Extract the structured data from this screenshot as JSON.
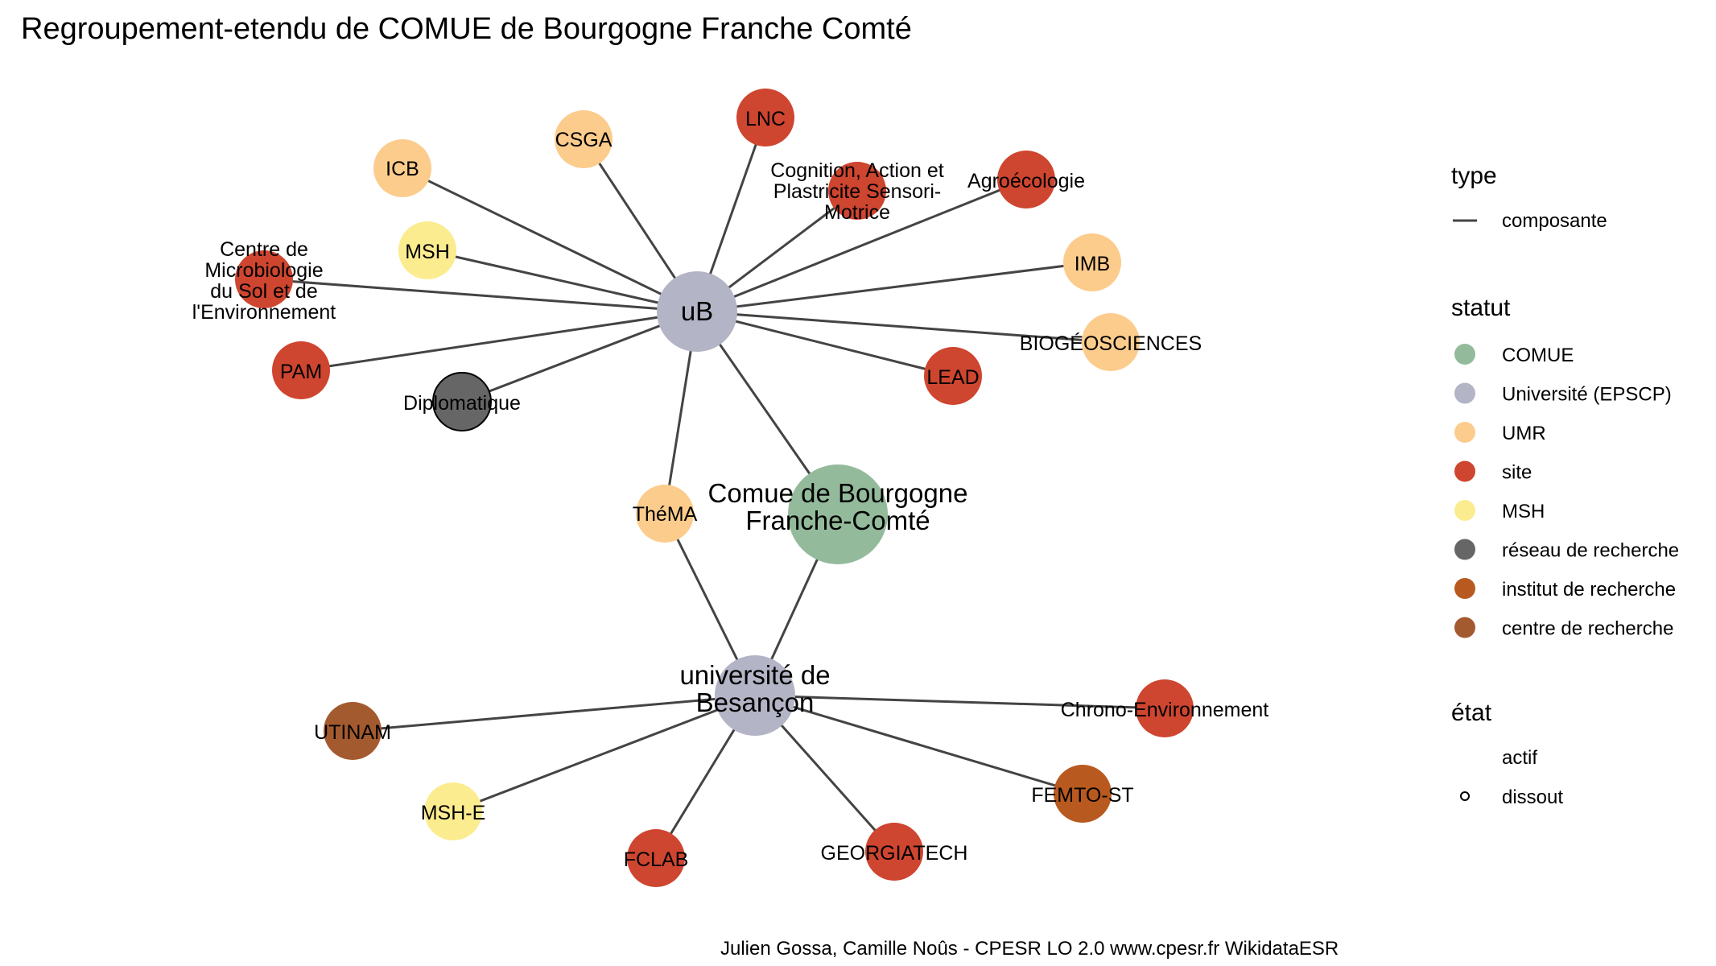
{
  "title": "Regroupement-etendu de COMUE de Bourgogne Franche Comté",
  "caption": "Julien Gossa, Camille Noûs - CPESR LO 2.0 www.cpesr.fr WikidataESR",
  "legend": {
    "type": {
      "title": "type",
      "items": [
        "composante"
      ]
    },
    "statut": {
      "title": "statut",
      "items": [
        {
          "label": "COMUE",
          "color": "#93bb9b"
        },
        {
          "label": "Université (EPSCP)",
          "color": "#b3b4c5"
        },
        {
          "label": "UMR",
          "color": "#fccc8c"
        },
        {
          "label": "site",
          "color": "#ce4530"
        },
        {
          "label": "MSH",
          "color": "#fcec90"
        },
        {
          "label": "réseau de recherche",
          "color": "#666666"
        },
        {
          "label": "institut de recherche",
          "color": "#b85a1f"
        },
        {
          "label": "centre de recherche",
          "color": "#a35a2f"
        }
      ]
    },
    "etat": {
      "title": "état",
      "items": [
        "actif",
        "dissout"
      ]
    }
  },
  "nodes": [
    {
      "id": "comue",
      "label": [
        "Comue de Bourgogne",
        "Franche-Comté"
      ],
      "statut": "COMUE",
      "color": "#93bb9b"
    },
    {
      "id": "ub",
      "label": [
        "uB"
      ],
      "statut": "Université (EPSCP)",
      "color": "#b3b4c5"
    },
    {
      "id": "ubesancon",
      "label": [
        "université de",
        "Besançon"
      ],
      "statut": "Université (EPSCP)",
      "color": "#b3b4c5"
    },
    {
      "id": "thema",
      "label": [
        "ThéMA"
      ],
      "statut": "UMR",
      "color": "#fccc8c"
    },
    {
      "id": "icb",
      "label": [
        "ICB"
      ],
      "statut": "UMR",
      "color": "#fccc8c"
    },
    {
      "id": "csga",
      "label": [
        "CSGA"
      ],
      "statut": "UMR",
      "color": "#fccc8c"
    },
    {
      "id": "lnc",
      "label": [
        "LNC"
      ],
      "statut": "site",
      "color": "#ce4530"
    },
    {
      "id": "cognition",
      "label": [
        "Cognition, Action et",
        "Plastricite Sensori-",
        "Motrice"
      ],
      "statut": "site",
      "color": "#ce4530"
    },
    {
      "id": "agroecologie",
      "label": [
        "Agroécologie"
      ],
      "statut": "site",
      "color": "#ce4530"
    },
    {
      "id": "msh",
      "label": [
        "MSH"
      ],
      "statut": "MSH",
      "color": "#fcec90"
    },
    {
      "id": "imb",
      "label": [
        "IMB"
      ],
      "statut": "UMR",
      "color": "#fccc8c"
    },
    {
      "id": "microbio",
      "label": [
        "Centre de",
        "Microbiologie",
        "du Sol et de",
        "l'Environnement"
      ],
      "statut": "site",
      "color": "#ce4530"
    },
    {
      "id": "biogeo",
      "label": [
        "BIOGÉOSCIENCES"
      ],
      "statut": "UMR",
      "color": "#fccc8c"
    },
    {
      "id": "pam",
      "label": [
        "PAM"
      ],
      "statut": "site",
      "color": "#ce4530"
    },
    {
      "id": "lead",
      "label": [
        "LEAD"
      ],
      "statut": "site",
      "color": "#ce4530"
    },
    {
      "id": "diplomatique",
      "label": [
        "Diplomatique"
      ],
      "statut": "réseau de recherche",
      "color": "#666666"
    },
    {
      "id": "utinam",
      "label": [
        "UTINAM"
      ],
      "statut": "centre de recherche",
      "color": "#a35a2f"
    },
    {
      "id": "chrono",
      "label": [
        "Chrono-Environnement"
      ],
      "statut": "site",
      "color": "#ce4530"
    },
    {
      "id": "femto",
      "label": [
        "FEMTO-ST"
      ],
      "statut": "institut de recherche",
      "color": "#b85a1f"
    },
    {
      "id": "mshe",
      "label": [
        "MSH-E"
      ],
      "statut": "MSH",
      "color": "#fcec90"
    },
    {
      "id": "fclab",
      "label": [
        "FCLAB"
      ],
      "statut": "site",
      "color": "#ce4530"
    },
    {
      "id": "georgiatech",
      "label": [
        "GEORGIATECH"
      ],
      "statut": "site",
      "color": "#ce4530"
    }
  ],
  "edges": [
    {
      "from": "ub",
      "to": "icb",
      "type": "composante"
    },
    {
      "from": "ub",
      "to": "csga",
      "type": "composante"
    },
    {
      "from": "ub",
      "to": "lnc",
      "type": "composante"
    },
    {
      "from": "ub",
      "to": "cognition",
      "type": "composante"
    },
    {
      "from": "ub",
      "to": "agroecologie",
      "type": "composante"
    },
    {
      "from": "ub",
      "to": "msh",
      "type": "composante"
    },
    {
      "from": "ub",
      "to": "imb",
      "type": "composante"
    },
    {
      "from": "ub",
      "to": "microbio",
      "type": "composante"
    },
    {
      "from": "ub",
      "to": "biogeo",
      "type": "composante"
    },
    {
      "from": "ub",
      "to": "pam",
      "type": "composante"
    },
    {
      "from": "ub",
      "to": "lead",
      "type": "composante"
    },
    {
      "from": "ub",
      "to": "diplomatique",
      "type": "composante"
    },
    {
      "from": "ub",
      "to": "thema",
      "type": "composante"
    },
    {
      "from": "ub",
      "to": "comue",
      "type": "composante"
    },
    {
      "from": "thema",
      "to": "ubesancon",
      "type": "composante"
    },
    {
      "from": "comue",
      "to": "ubesancon",
      "type": "composante"
    },
    {
      "from": "ubesancon",
      "to": "utinam",
      "type": "composante"
    },
    {
      "from": "ubesancon",
      "to": "chrono",
      "type": "composante"
    },
    {
      "from": "ubesancon",
      "to": "femto",
      "type": "composante"
    },
    {
      "from": "ubesancon",
      "to": "mshe",
      "type": "composante"
    },
    {
      "from": "ubesancon",
      "to": "fclab",
      "type": "composante"
    },
    {
      "from": "ubesancon",
      "to": "georgiatech",
      "type": "composante"
    }
  ]
}
